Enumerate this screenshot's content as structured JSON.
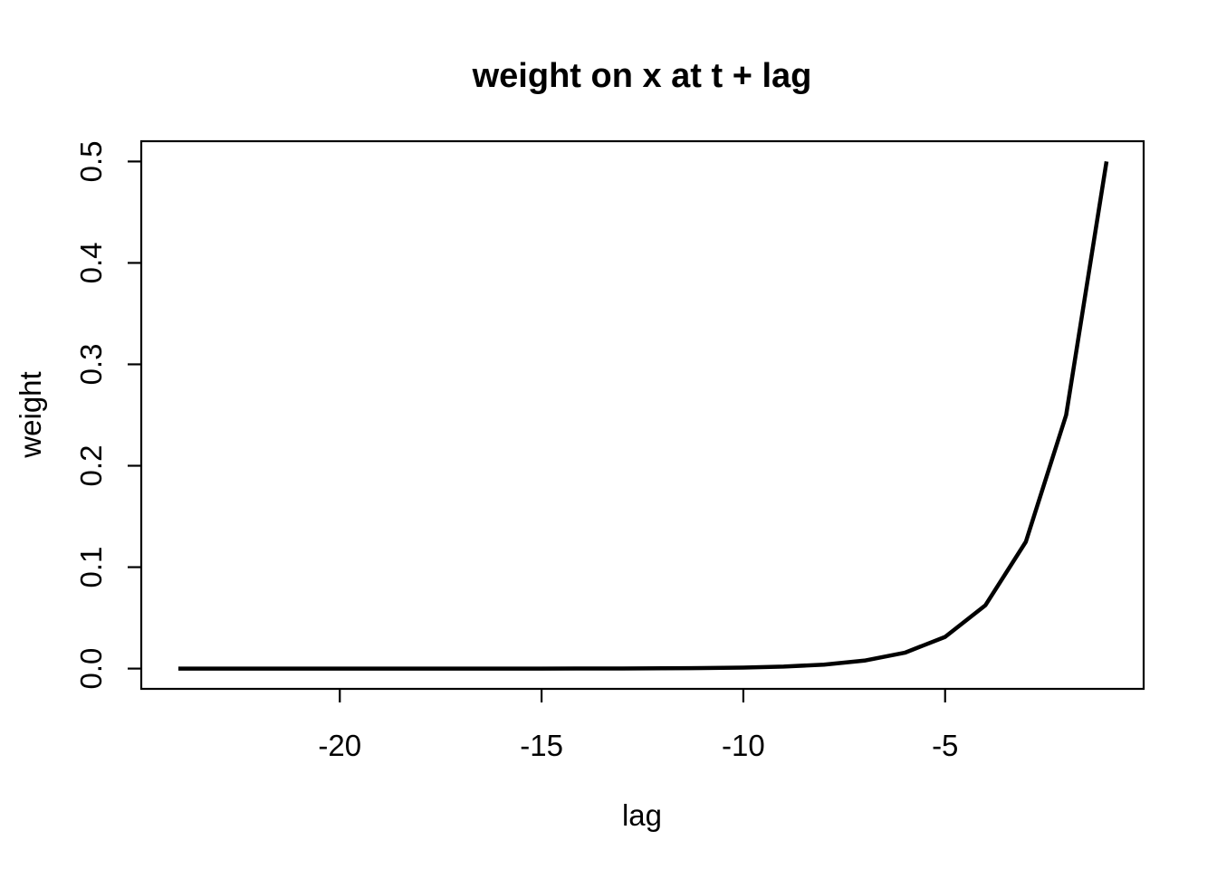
{
  "chart_data": {
    "type": "line",
    "title": "weight on x at t + lag",
    "xlabel": "lag",
    "ylabel": "weight",
    "grid": false,
    "legend": null,
    "background": "#ffffff",
    "line_color": "#000000",
    "axis_color": "#000000",
    "xlim": [
      -24.92,
      -0.08
    ],
    "ylim": [
      -0.02,
      0.52
    ],
    "xticks": {
      "values": [
        -20,
        -15,
        -10,
        -5
      ],
      "labels": [
        "-20",
        "-15",
        "-10",
        "-5"
      ]
    },
    "yticks": {
      "values": [
        0.0,
        0.1,
        0.2,
        0.3,
        0.4,
        0.5
      ],
      "labels": [
        "0.0",
        "0.1",
        "0.2",
        "0.3",
        "0.4",
        "0.5"
      ]
    },
    "series": [
      {
        "name": "weight",
        "x": [
          -24,
          -23,
          -22,
          -21,
          -20,
          -19,
          -18,
          -17,
          -16,
          -15,
          -14,
          -13,
          -12,
          -11,
          -10,
          -9,
          -8,
          -7,
          -6,
          -5,
          -4,
          -3,
          -2,
          -1
        ],
        "y": [
          5.96e-08,
          1.192e-07,
          2.384e-07,
          4.768e-07,
          9.537e-07,
          1.9073e-06,
          3.8147e-06,
          7.6294e-06,
          1.52588e-05,
          3.05176e-05,
          6.10352e-05,
          0.0001220703,
          0.0002441406,
          0.00048828125,
          0.0009765625,
          0.001953125,
          0.00390625,
          0.0078125,
          0.015625,
          0.03125,
          0.0625,
          0.125,
          0.25,
          0.5
        ]
      }
    ]
  }
}
